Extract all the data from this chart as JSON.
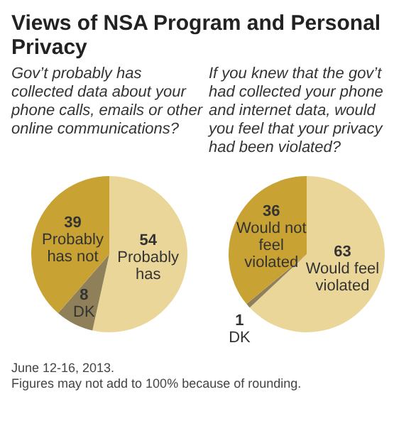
{
  "chart_data": [
    {
      "type": "pie",
      "title": "Views of NSA Program and Personal Privacy",
      "subtitle": "Gov’t probably has collected data about your phone calls, emails or other online communications?",
      "categories": [
        "Probably has",
        "DK",
        "Probably has not"
      ],
      "values": [
        54,
        8,
        39
      ],
      "colors": [
        "#ebd69a",
        "#8f805a",
        "#c9a234"
      ],
      "data_labels": true
    },
    {
      "type": "pie",
      "subtitle": "If you knew that the gov’t had collected your phone and internet data, would you feel that your privacy had been violated?",
      "categories": [
        "Would feel violated",
        "DK",
        "Would not feel violated"
      ],
      "values": [
        63,
        1,
        36
      ],
      "colors": [
        "#ebd69a",
        "#8f805a",
        "#c9a234"
      ],
      "data_labels": true,
      "annotations": [
        "June 12-16, 2013.",
        "Figures may not add to 100% because of rounding."
      ]
    }
  ]
}
